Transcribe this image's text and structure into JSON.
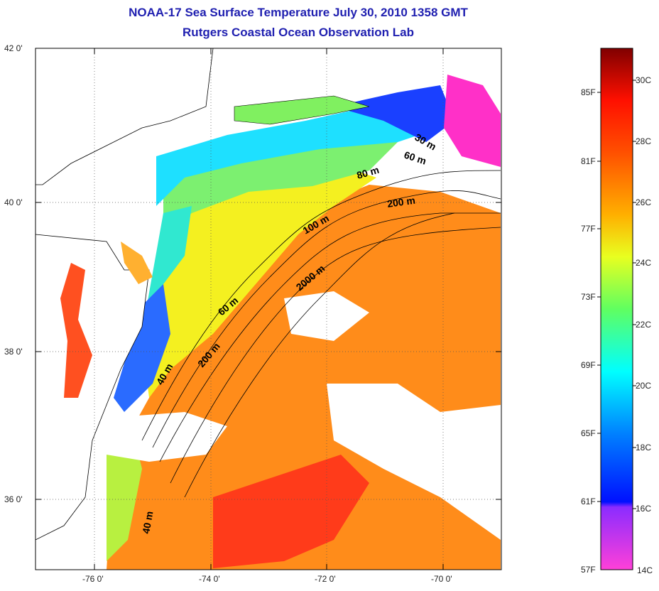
{
  "title_line1": "NOAA-17 Sea Surface Temperature July 30, 2010 1358 GMT",
  "title_line2": "Rutgers Coastal Ocean Observation Lab",
  "lat_labels": [
    "42 0'",
    "40 0'",
    "38 0'",
    "36 0'"
  ],
  "lon_labels": [
    "-76 0'",
    "-74 0'",
    "-72 0'",
    "-70 0'"
  ],
  "contours": [
    "30 m",
    "60 m",
    "80 m",
    "200 m",
    "100 m",
    "2000 m",
    "60 m",
    "200 m",
    "40 m",
    "40 m"
  ],
  "colorbar": {
    "fahrenheit": [
      "85F",
      "81F",
      "77F",
      "73F",
      "69F",
      "65F",
      "61F",
      "57F"
    ],
    "celsius": [
      "30C",
      "28C",
      "26C",
      "24C",
      "22C",
      "20C",
      "18C",
      "16C",
      "14C"
    ]
  },
  "colors": {
    "title": "#1f1fb0",
    "warm": "#ff8c1a",
    "hot": "#ff3b1a",
    "cool": "#1ee0ff",
    "cold": "#1a40ff",
    "coldest": "#ff30c8"
  }
}
